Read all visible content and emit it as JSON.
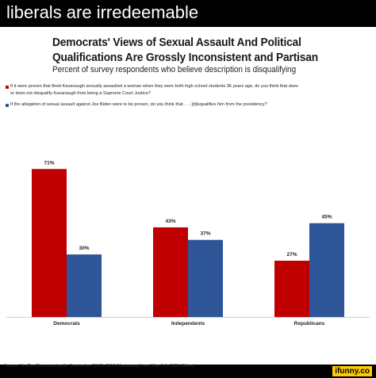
{
  "caption": "liberals are irredeemable",
  "watermark": "ifunny.co",
  "chart_data": {
    "type": "bar",
    "title_line1": "Democrats' Views of Sexual Assault And Political",
    "title_line2": "Qualifications Are Grossly Inconsistent and Partisan",
    "subtitle": "Percent of survey respondents who believe description is disqualifying",
    "categories": [
      "Democrats",
      "Independents",
      "Republicans"
    ],
    "series": [
      {
        "name": "If it were proven that Brett Kavanaugh sexually assaulted a woman when they were both high school students 36 years ago, do you think that does or does not disqualify Kavanaugh from being a Supreme Court Justice?",
        "name_line1": "If it were proven that Brett Kavanaugh sexually assaulted a woman when they were both high school students 36 years ago, do you think that does",
        "name_line2": "or does not disqualify Kavanaugh from being a Supreme Court Justice?",
        "color": "#c00000",
        "values": [
          71,
          43,
          27
        ],
        "labels": [
          "71%",
          "43%",
          "27%"
        ]
      },
      {
        "name": "If the allegation of sexual assault against Joe Biden were to be proven, do you think that . . . [d]isqualifies him from the presidency?",
        "color": "#2e5597",
        "values": [
          30,
          37,
          45
        ],
        "labels": [
          "30%",
          "37%",
          "45%"
        ]
      }
    ],
    "ylim": [
      0,
      80
    ],
    "grid": false,
    "source": "Source: YouGov/Economist polls, September 23-25, 2018 (Kavanaugh) and May 3-5, 2020 (Biden)"
  }
}
